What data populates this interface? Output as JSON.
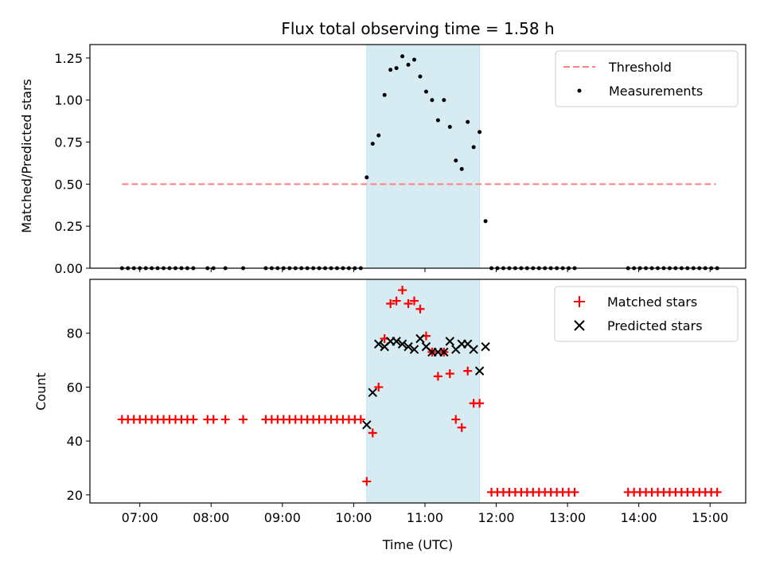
{
  "chart_data": [
    {
      "type": "scatter",
      "title": "Flux total observing time = 1.58 h",
      "xlabel": "",
      "ylabel": "Matched/Predicted stars",
      "ylim": [
        0,
        1.33
      ],
      "xlim_hours": [
        6.3,
        15.5
      ],
      "yticks": [
        0,
        0.25,
        0.5,
        0.75,
        1.0,
        1.25
      ],
      "ytick_labels": [
        "0.00",
        "0.25",
        "0.50",
        "0.75",
        "1.00",
        "1.25"
      ],
      "grid": false,
      "legend_position": "top-right",
      "shaded_interval": [
        "10:11",
        "11:46"
      ],
      "shade_color": "#add8e6",
      "threshold": {
        "name": "Threshold",
        "value": 0.5,
        "x_start": "06:45",
        "x_end": "15:05",
        "color": "#ff7f7f",
        "style": "dashed"
      },
      "series": [
        {
          "name": "Measurements",
          "color": "#000000",
          "marker": "dot",
          "points": [
            [
              "06:45",
              0
            ],
            [
              "06:50",
              0
            ],
            [
              "06:55",
              0
            ],
            [
              "07:00",
              0
            ],
            [
              "07:05",
              0
            ],
            [
              "07:10",
              0
            ],
            [
              "07:15",
              0
            ],
            [
              "07:20",
              0
            ],
            [
              "07:25",
              0
            ],
            [
              "07:30",
              0
            ],
            [
              "07:35",
              0
            ],
            [
              "07:40",
              0
            ],
            [
              "07:45",
              0
            ],
            [
              "07:57",
              0
            ],
            [
              "08:02",
              0
            ],
            [
              "08:12",
              0
            ],
            [
              "08:27",
              0
            ],
            [
              "08:46",
              0
            ],
            [
              "08:51",
              0
            ],
            [
              "08:56",
              0
            ],
            [
              "09:01",
              0
            ],
            [
              "09:06",
              0
            ],
            [
              "09:11",
              0
            ],
            [
              "09:16",
              0
            ],
            [
              "09:21",
              0
            ],
            [
              "09:26",
              0
            ],
            [
              "09:31",
              0
            ],
            [
              "09:36",
              0
            ],
            [
              "09:41",
              0
            ],
            [
              "09:46",
              0
            ],
            [
              "09:51",
              0
            ],
            [
              "09:56",
              0
            ],
            [
              "10:01",
              0
            ],
            [
              "10:06",
              0
            ],
            [
              "10:11",
              0.54
            ],
            [
              "10:16",
              0.74
            ],
            [
              "10:21",
              0.79
            ],
            [
              "10:26",
              1.03
            ],
            [
              "10:31",
              1.18
            ],
            [
              "10:36",
              1.19
            ],
            [
              "10:41",
              1.26
            ],
            [
              "10:46",
              1.21
            ],
            [
              "10:51",
              1.24
            ],
            [
              "10:56",
              1.14
            ],
            [
              "11:01",
              1.05
            ],
            [
              "11:06",
              1.0
            ],
            [
              "11:11",
              0.88
            ],
            [
              "11:16",
              1.0
            ],
            [
              "11:21",
              0.84
            ],
            [
              "11:26",
              0.64
            ],
            [
              "11:31",
              0.59
            ],
            [
              "11:36",
              0.87
            ],
            [
              "11:41",
              0.72
            ],
            [
              "11:46",
              0.81
            ],
            [
              "11:51",
              0.28
            ],
            [
              "11:56",
              0
            ],
            [
              "12:01",
              0
            ],
            [
              "12:06",
              0
            ],
            [
              "12:11",
              0
            ],
            [
              "12:16",
              0
            ],
            [
              "12:21",
              0
            ],
            [
              "12:26",
              0
            ],
            [
              "12:31",
              0
            ],
            [
              "12:36",
              0
            ],
            [
              "12:41",
              0
            ],
            [
              "12:46",
              0
            ],
            [
              "12:51",
              0
            ],
            [
              "12:56",
              0
            ],
            [
              "13:01",
              0
            ],
            [
              "13:06",
              0
            ],
            [
              "13:51",
              0
            ],
            [
              "13:56",
              0
            ],
            [
              "14:01",
              0
            ],
            [
              "14:06",
              0
            ],
            [
              "14:11",
              0
            ],
            [
              "14:16",
              0
            ],
            [
              "14:21",
              0
            ],
            [
              "14:26",
              0
            ],
            [
              "14:31",
              0
            ],
            [
              "14:36",
              0
            ],
            [
              "14:41",
              0
            ],
            [
              "14:46",
              0
            ],
            [
              "14:51",
              0
            ],
            [
              "14:56",
              0
            ],
            [
              "15:01",
              0
            ],
            [
              "15:06",
              0
            ]
          ]
        }
      ]
    },
    {
      "type": "scatter",
      "title": "",
      "xlabel": "Time (UTC)",
      "ylabel": "Count",
      "ylim": [
        17,
        100
      ],
      "xlim_hours": [
        6.3,
        15.5
      ],
      "yticks": [
        20,
        40,
        60,
        80
      ],
      "ytick_labels": [
        "20",
        "40",
        "60",
        "80"
      ],
      "xtick_labels": [
        "07:00",
        "08:00",
        "09:00",
        "10:00",
        "11:00",
        "12:00",
        "13:00",
        "14:00",
        "15:00"
      ],
      "grid": false,
      "legend_position": "top-right",
      "shaded_interval": [
        "10:11",
        "11:46"
      ],
      "shade_color": "#add8e6",
      "series": [
        {
          "name": "Matched stars",
          "color": "#ff0000",
          "marker": "plus",
          "points": [
            [
              "06:45",
              48
            ],
            [
              "06:50",
              48
            ],
            [
              "06:55",
              48
            ],
            [
              "07:00",
              48
            ],
            [
              "07:05",
              48
            ],
            [
              "07:10",
              48
            ],
            [
              "07:15",
              48
            ],
            [
              "07:20",
              48
            ],
            [
              "07:25",
              48
            ],
            [
              "07:30",
              48
            ],
            [
              "07:35",
              48
            ],
            [
              "07:40",
              48
            ],
            [
              "07:45",
              48
            ],
            [
              "07:57",
              48
            ],
            [
              "08:02",
              48
            ],
            [
              "08:12",
              48
            ],
            [
              "08:27",
              48
            ],
            [
              "08:46",
              48
            ],
            [
              "08:51",
              48
            ],
            [
              "08:56",
              48
            ],
            [
              "09:01",
              48
            ],
            [
              "09:06",
              48
            ],
            [
              "09:11",
              48
            ],
            [
              "09:16",
              48
            ],
            [
              "09:21",
              48
            ],
            [
              "09:26",
              48
            ],
            [
              "09:31",
              48
            ],
            [
              "09:36",
              48
            ],
            [
              "09:41",
              48
            ],
            [
              "09:46",
              48
            ],
            [
              "09:51",
              48
            ],
            [
              "09:56",
              48
            ],
            [
              "10:01",
              48
            ],
            [
              "10:06",
              48
            ],
            [
              "10:11",
              25
            ],
            [
              "10:16",
              43
            ],
            [
              "10:21",
              60
            ],
            [
              "10:26",
              78
            ],
            [
              "10:31",
              91
            ],
            [
              "10:36",
              92
            ],
            [
              "10:41",
              96
            ],
            [
              "10:46",
              91
            ],
            [
              "10:51",
              92
            ],
            [
              "10:56",
              89
            ],
            [
              "11:01",
              79
            ],
            [
              "11:06",
              73
            ],
            [
              "11:11",
              64
            ],
            [
              "11:16",
              73
            ],
            [
              "11:21",
              65
            ],
            [
              "11:26",
              48
            ],
            [
              "11:31",
              45
            ],
            [
              "11:36",
              66
            ],
            [
              "11:41",
              54
            ],
            [
              "11:46",
              54
            ],
            [
              "11:56",
              21
            ],
            [
              "12:01",
              21
            ],
            [
              "12:06",
              21
            ],
            [
              "12:11",
              21
            ],
            [
              "12:16",
              21
            ],
            [
              "12:21",
              21
            ],
            [
              "12:26",
              21
            ],
            [
              "12:31",
              21
            ],
            [
              "12:36",
              21
            ],
            [
              "12:41",
              21
            ],
            [
              "12:46",
              21
            ],
            [
              "12:51",
              21
            ],
            [
              "12:56",
              21
            ],
            [
              "13:01",
              21
            ],
            [
              "13:06",
              21
            ],
            [
              "13:51",
              21
            ],
            [
              "13:56",
              21
            ],
            [
              "14:01",
              21
            ],
            [
              "14:06",
              21
            ],
            [
              "14:11",
              21
            ],
            [
              "14:16",
              21
            ],
            [
              "14:21",
              21
            ],
            [
              "14:26",
              21
            ],
            [
              "14:31",
              21
            ],
            [
              "14:36",
              21
            ],
            [
              "14:41",
              21
            ],
            [
              "14:46",
              21
            ],
            [
              "14:51",
              21
            ],
            [
              "14:56",
              21
            ],
            [
              "15:01",
              21
            ],
            [
              "15:06",
              21
            ]
          ]
        },
        {
          "name": "Predicted stars",
          "color": "#000000",
          "marker": "x",
          "points": [
            [
              "10:11",
              46
            ],
            [
              "10:16",
              58
            ],
            [
              "10:21",
              76
            ],
            [
              "10:26",
              75
            ],
            [
              "10:31",
              77
            ],
            [
              "10:36",
              77
            ],
            [
              "10:41",
              76
            ],
            [
              "10:46",
              75
            ],
            [
              "10:51",
              74
            ],
            [
              "10:56",
              78
            ],
            [
              "11:01",
              75
            ],
            [
              "11:06",
              73
            ],
            [
              "11:11",
              73
            ],
            [
              "11:16",
              73
            ],
            [
              "11:21",
              77
            ],
            [
              "11:26",
              74
            ],
            [
              "11:31",
              76
            ],
            [
              "11:36",
              76
            ],
            [
              "11:41",
              74
            ],
            [
              "11:46",
              66
            ],
            [
              "11:51",
              75
            ]
          ]
        }
      ]
    }
  ]
}
